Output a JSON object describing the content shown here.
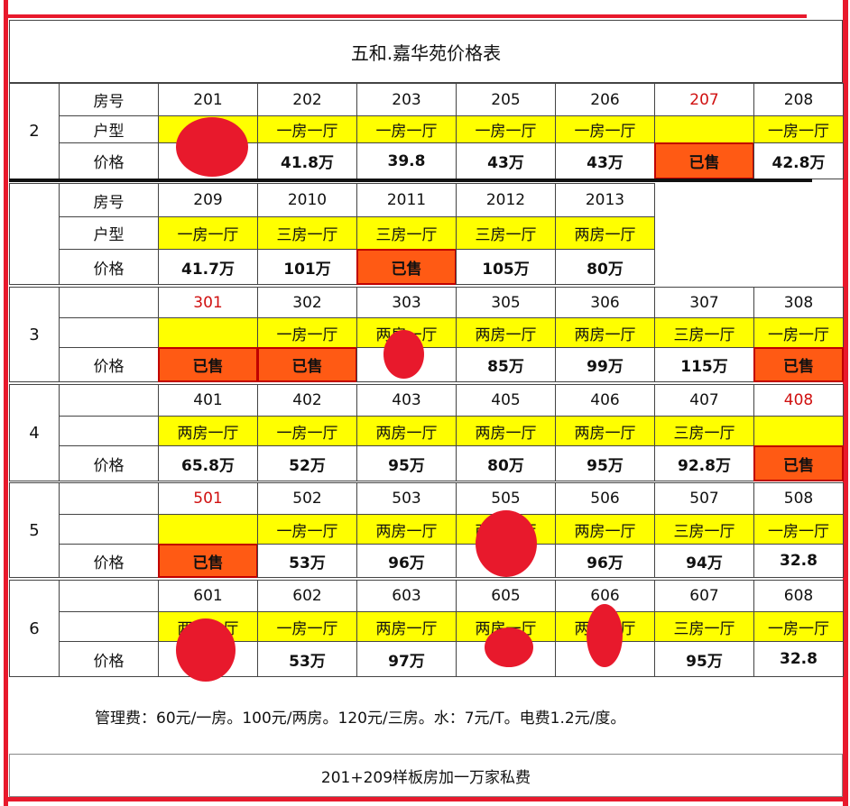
{
  "title": "五和.嘉华苑价格表",
  "groups": [
    {
      "floor": "2",
      "number_label": "房号",
      "type_label": "户型",
      "price_label": "价格",
      "rooms": [
        {
          "number": "201"
        },
        {
          "number": "202",
          "type": "一房一厅",
          "price": "41.8万"
        },
        {
          "number": "203",
          "type": "一房一厅",
          "price": "39.8"
        },
        {
          "number": "205",
          "type": "一房一厅",
          "price": "43万"
        },
        {
          "number": "206",
          "type": "一房一厅",
          "price": "43万"
        },
        {
          "number": "207",
          "number_color": "#d01010",
          "price": "已售",
          "sold": true
        },
        {
          "number": "208",
          "type": "一房一厅",
          "price": "42.8万"
        }
      ]
    },
    {
      "number_label": "房号",
      "type_label": "户型",
      "price_label": "价格",
      "rooms": [
        {
          "number": "209",
          "type": "一房一厅",
          "price": "41.7万"
        },
        {
          "number": "2010",
          "type": "三房一厅",
          "price": "101万"
        },
        {
          "number": "2011",
          "type": "三房一厅",
          "price": "已售",
          "sold": true
        },
        {
          "number": "2012",
          "type": "三房一厅",
          "price": "105万"
        },
        {
          "number": "2013",
          "type": "两房一厅",
          "price": "80万"
        }
      ]
    },
    {
      "floor": "3",
      "price_label": "价格",
      "rooms": [
        {
          "number": "301",
          "number_color": "#d01010",
          "price": "已售",
          "sold": true
        },
        {
          "number": "302",
          "type": "一房一厅",
          "price": "已售",
          "sold": true
        },
        {
          "number": "303",
          "type": "两房一厅"
        },
        {
          "number": "305",
          "type": "两房一厅",
          "price": "85万"
        },
        {
          "number": "306",
          "type": "两房一厅",
          "price": "99万"
        },
        {
          "number": "307",
          "type": "三房一厅",
          "price": "115万"
        },
        {
          "number": "308",
          "type": "一房一厅",
          "price": "已售",
          "sold": true
        }
      ]
    },
    {
      "floor": "4",
      "price_label": "价格",
      "rooms": [
        {
          "number": "401",
          "type": "两房一厅",
          "price": "65.8万"
        },
        {
          "number": "402",
          "type": "一房一厅",
          "price": "52万"
        },
        {
          "number": "403",
          "type": "两房一厅",
          "price": "95万"
        },
        {
          "number": "405",
          "type": "两房一厅",
          "price": "80万"
        },
        {
          "number": "406",
          "type": "两房一厅",
          "price": "95万"
        },
        {
          "number": "407",
          "type": "三房一厅",
          "price": "92.8万"
        },
        {
          "number": "408",
          "number_color": "#d01010",
          "price": "已售",
          "sold": true
        }
      ]
    },
    {
      "floor": "5",
      "price_label": "价格",
      "rooms": [
        {
          "number": "501",
          "number_color": "#d01010",
          "price": "已售",
          "sold": true
        },
        {
          "number": "502",
          "type": "一房一厅",
          "price": "53万"
        },
        {
          "number": "503",
          "type": "两房一厅",
          "price": "96万"
        },
        {
          "number": "505",
          "type": "两房一厅"
        },
        {
          "number": "506",
          "type": "两房一厅",
          "price": "96万"
        },
        {
          "number": "507",
          "type": "三房一厅",
          "price": "94万"
        },
        {
          "number": "508",
          "type": "一房一厅",
          "price": "32.8"
        }
      ]
    },
    {
      "floor": "6",
      "price_label": "价格",
      "rooms": [
        {
          "number": "601",
          "type": "两房一厅"
        },
        {
          "number": "602",
          "type": "一房一厅",
          "price": "53万"
        },
        {
          "number": "603",
          "type": "两房一厅",
          "price": "97万"
        },
        {
          "number": "605",
          "type": "两房一厅"
        },
        {
          "number": "606",
          "type": "两房一厅"
        },
        {
          "number": "607",
          "type": "三房一厅",
          "price": "95万"
        },
        {
          "number": "608",
          "type": "一房一厅",
          "price": "32.8"
        }
      ]
    }
  ],
  "note": "管理费：60元/一房。100元/两房。120元/三房。水：7元/T。电费1.2元/度。",
  "footer": "201+209样板房加一万家私费"
}
